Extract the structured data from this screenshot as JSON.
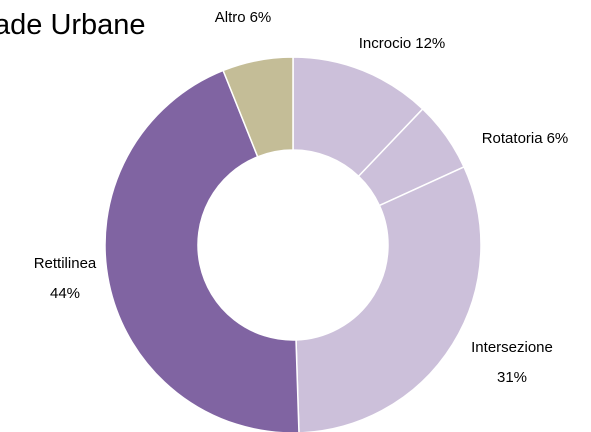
{
  "chart_data": {
    "type": "donut",
    "title": "ade Urbane",
    "categories": [
      "Incrocio",
      "Rotatoria",
      "Intersezione",
      "Rettilinea",
      "Altro"
    ],
    "values": [
      12,
      6,
      31,
      44,
      6
    ],
    "value_labels": [
      "12%",
      "6%",
      "31%",
      "44%",
      "6%"
    ],
    "colors": [
      "#ccc0da",
      "#ccc0da",
      "#ccc0da",
      "#8064a2",
      "#c4bd97"
    ]
  }
}
